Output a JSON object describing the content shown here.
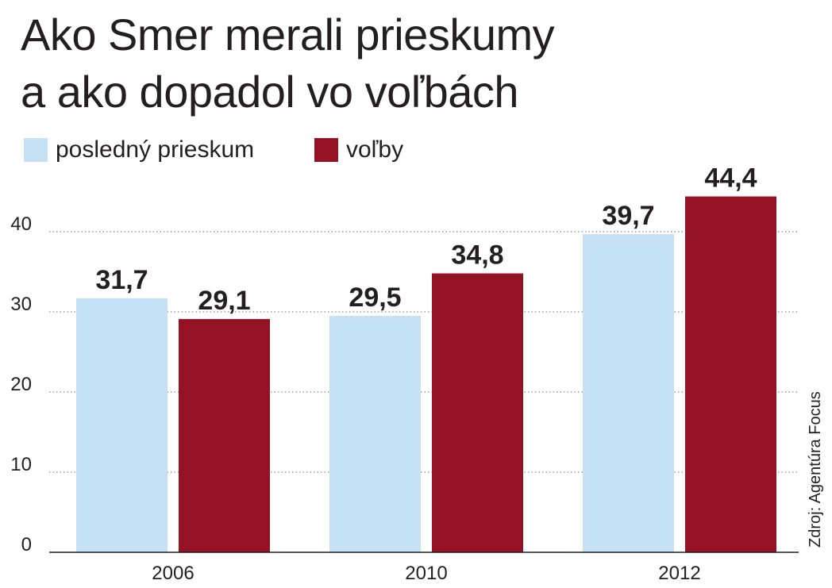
{
  "title_lines": [
    "Ako Smer merali prieskumy",
    "a ako dopadol vo voľbách"
  ],
  "source": "Zdroj: Agentúra Focus",
  "colors": {
    "survey": "#c5e1f6",
    "election": "#951124",
    "text": "#231f20",
    "grid": "#888888"
  },
  "chart_data": {
    "type": "bar",
    "categories": [
      "2006",
      "2010",
      "2012"
    ],
    "series": [
      {
        "name": "posledný prieskum",
        "values": [
          31.7,
          29.5,
          39.7
        ],
        "labels": [
          "31,7",
          "29,5",
          "39,7"
        ]
      },
      {
        "name": "voľby",
        "values": [
          29.1,
          34.8,
          44.4
        ],
        "labels": [
          "29,1",
          "34,8",
          "44,4"
        ]
      }
    ],
    "yticks": [
      "0",
      "10",
      "20",
      "30",
      "40"
    ],
    "ylim": [
      0,
      40
    ],
    "grid": "dotted horizontal",
    "legend": "top-left"
  }
}
